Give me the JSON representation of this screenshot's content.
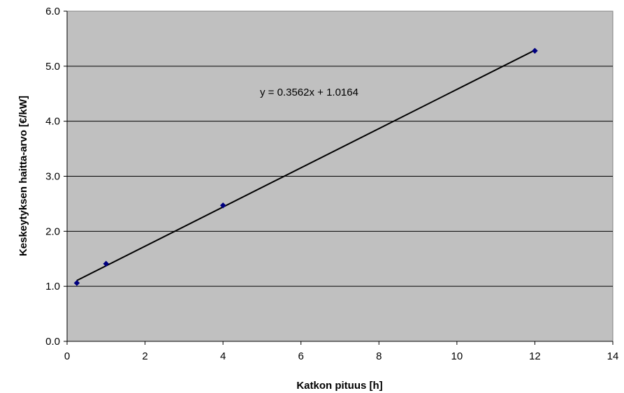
{
  "chart_data": {
    "type": "scatter",
    "title": "",
    "xlabel": "Katkon pituus [h]",
    "ylabel": "Keskeytyksen haitta-arvo [€/kW]",
    "xlim": [
      0,
      14
    ],
    "ylim": [
      0,
      6
    ],
    "xticks": [
      0,
      2,
      4,
      6,
      8,
      10,
      12,
      14
    ],
    "yticks": [
      0,
      1,
      2,
      3,
      4,
      5,
      6
    ],
    "xtick_labels": [
      "0",
      "2",
      "4",
      "6",
      "8",
      "10",
      "12",
      "14"
    ],
    "ytick_labels": [
      "0.0",
      "1.0",
      "2.0",
      "3.0",
      "4.0",
      "5.0",
      "6.0"
    ],
    "grid": "horizontal",
    "plot_background": "#c0c0c0",
    "marker_color": "#000080",
    "line_color": "#000000",
    "series": [
      {
        "x": [
          0.25,
          1,
          4,
          12
        ],
        "y": [
          1.06,
          1.41,
          2.47,
          5.28
        ]
      }
    ],
    "trendline": {
      "slope": 0.3562,
      "intercept": 1.0164,
      "x_range": [
        0.25,
        12
      ],
      "label": "y = 0.3562x + 1.0164"
    }
  }
}
